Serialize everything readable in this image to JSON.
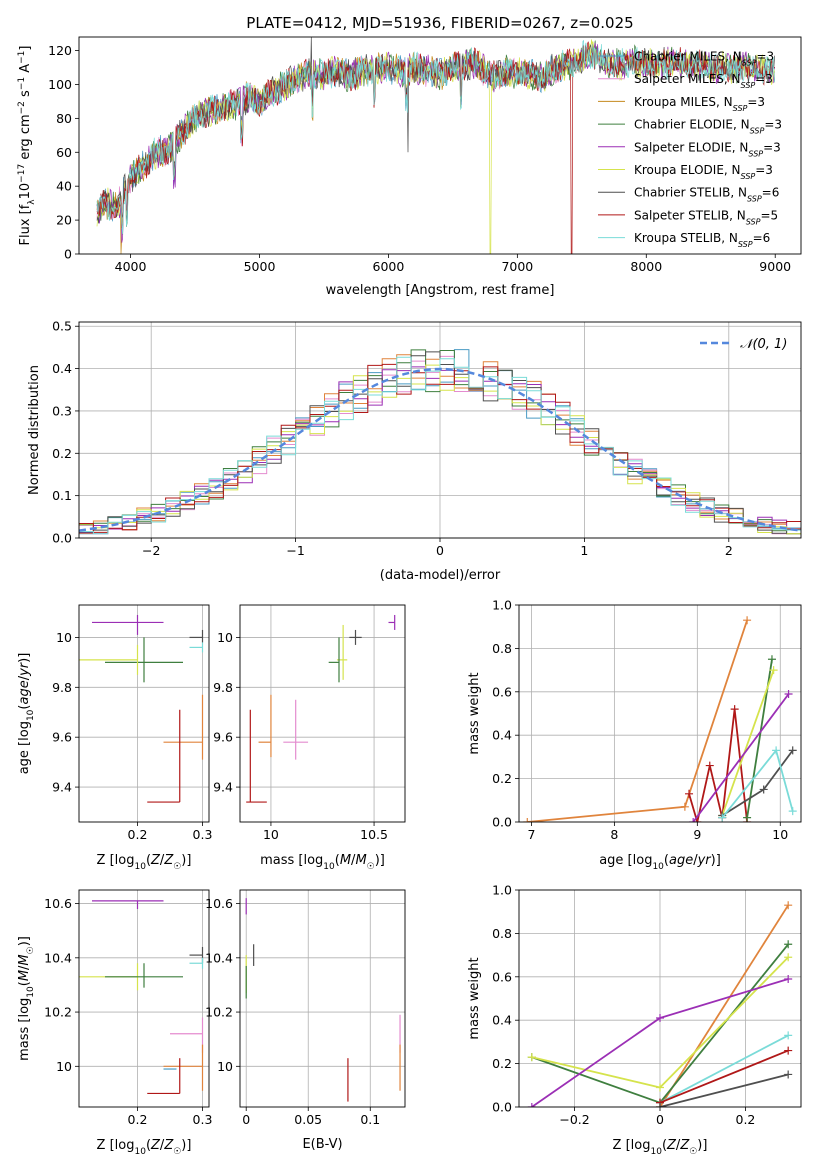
{
  "colors": {
    "chabrier_miles": "#4a9bc4",
    "salpeter_miles": "#e48ccf",
    "kroupa_miles": "#c58a1e",
    "chabrier_elodie": "#3f7f3f",
    "salpeter_elodie": "#9b2fb5",
    "kroupa_elodie": "#d5e34c",
    "chabrier_stelib": "#4f4f4f",
    "salpeter_stelib": "#b01818",
    "kroupa_stelib": "#7adbd8",
    "gaussian": "#5588dd",
    "orange": "#e0843c"
  },
  "chart_data": [
    {
      "id": "spectrum",
      "type": "line",
      "title": "PLATE=0412, MJD=51936, FIBERID=0267, z=0.025",
      "xlabel": "wavelength [Angstrom, rest frame]",
      "ylabel": "Flux [f_λ 10^-17 erg cm^-2 s^-1 A^-1]",
      "xlim": [
        3600,
        9200
      ],
      "ylim": [
        0,
        128
      ],
      "xticks": [
        4000,
        5000,
        6000,
        7000,
        8000,
        9000
      ],
      "yticks": [
        0,
        20,
        40,
        60,
        80,
        100,
        120
      ],
      "grid": false,
      "legend_position": "right",
      "spectrum_envelope": {
        "x": [
          3740,
          3800,
          3900,
          4000,
          4100,
          4200,
          4300,
          4400,
          4500,
          4600,
          4700,
          4800,
          4900,
          5000,
          5100,
          5200,
          5300,
          5400,
          5500,
          5600,
          5700,
          5800,
          5900,
          6000,
          6100,
          6200,
          6300,
          6400,
          6500,
          6600,
          6700,
          6800,
          6900,
          7000,
          7100,
          7200,
          7300,
          7400,
          7500,
          7600,
          7700,
          7800,
          7900,
          8000,
          8200,
          8400,
          8600,
          8800,
          9000
        ],
        "y": [
          25,
          30,
          28,
          45,
          52,
          60,
          62,
          72,
          80,
          84,
          86,
          88,
          92,
          90,
          95,
          100,
          104,
          106,
          106,
          108,
          105,
          108,
          109,
          110,
          108,
          110,
          108,
          106,
          110,
          112,
          112,
          104,
          108,
          107,
          106,
          104,
          110,
          112,
          116,
          118,
          112,
          112,
          114,
          112,
          113,
          111,
          110,
          110,
          108
        ]
      },
      "series": [
        {
          "name": "Chabrier MILES, N_SSP=3",
          "label": "Chabrier MILES, N",
          "sub": "SSP",
          "tail": "=3",
          "color_key": "chabrier_miles"
        },
        {
          "name": "Salpeter MILES, N_SSP=3",
          "label": "Salpeter MILES, N",
          "sub": "SSP",
          "tail": "=3",
          "color_key": "salpeter_miles"
        },
        {
          "name": "Kroupa MILES, N_SSP=3",
          "label": "Kroupa MILES, N",
          "sub": "SSP",
          "tail": "=3",
          "color_key": "kroupa_miles"
        },
        {
          "name": "Chabrier ELODIE, N_SSP=3",
          "label": "Chabrier ELODIE, N",
          "sub": "SSP",
          "tail": "=3",
          "color_key": "chabrier_elodie"
        },
        {
          "name": "Salpeter ELODIE, N_SSP=3",
          "label": "Salpeter ELODIE, N",
          "sub": "SSP",
          "tail": "=3",
          "color_key": "salpeter_elodie"
        },
        {
          "name": "Kroupa ELODIE, N_SSP=3",
          "label": "Kroupa ELODIE, N",
          "sub": "SSP",
          "tail": "=3",
          "color_key": "kroupa_elodie"
        },
        {
          "name": "Chabrier STELIB, N_SSP=6",
          "label": "Chabrier STELIB, N",
          "sub": "SSP",
          "tail": "=6",
          "color_key": "chabrier_stelib"
        },
        {
          "name": "Salpeter STELIB, N_SSP=5",
          "label": "Salpeter STELIB, N",
          "sub": "SSP",
          "tail": "=5",
          "color_key": "salpeter_stelib"
        },
        {
          "name": "Kroupa STELIB, N_SSP=6",
          "label": "Kroupa STELIB, N",
          "sub": "SSP",
          "tail": "=6",
          "color_key": "kroupa_stelib"
        }
      ]
    },
    {
      "id": "residuals",
      "type": "histogram",
      "xlabel": "(data-model)/error",
      "ylabel": "Normed distribution",
      "xlim": [
        -2.5,
        2.5
      ],
      "ylim": [
        0,
        0.51
      ],
      "xticks": [
        -2,
        -1,
        0,
        1,
        2
      ],
      "yticks": [
        0.0,
        0.1,
        0.2,
        0.3,
        0.4,
        0.5
      ],
      "grid": true,
      "legend_position": "top-right",
      "legend_label": "𝒩(0, 1)",
      "bin_width": 0.1
    },
    {
      "id": "age_vs_Z",
      "type": "errorbar",
      "xlabel": "Z [log10(Z/Z☉)]",
      "ylabel": "age [log10(age/yr)]",
      "xlim": [
        0.11,
        0.31
      ],
      "ylim": [
        9.26,
        10.13
      ],
      "xticks": [
        0.2,
        0.3
      ],
      "yticks": [
        9.4,
        9.6,
        9.8,
        10.0
      ],
      "grid": true,
      "points": [
        {
          "color_key": "salpeter_elodie",
          "x": 0.2,
          "y": 10.06,
          "xerr": [
            0.07,
            0.04
          ],
          "yerr": [
            0.05,
            0.03
          ]
        },
        {
          "color_key": "chabrier_elodie",
          "x": 0.21,
          "y": 9.9,
          "xerr": [
            0.06,
            0.06
          ],
          "yerr": [
            0.08,
            0.1
          ]
        },
        {
          "color_key": "kroupa_elodie",
          "x": 0.2,
          "y": 9.91,
          "xerr": [
            0.09,
            0.0
          ],
          "yerr": [
            0.06,
            0.06
          ]
        },
        {
          "color_key": "chabrier_stelib",
          "x": 0.3,
          "y": 10.0,
          "xerr": [
            0.02,
            0.0
          ],
          "yerr": [
            0.02,
            0.03
          ]
        },
        {
          "color_key": "kroupa_stelib",
          "x": 0.3,
          "y": 9.96,
          "xerr": [
            0.02,
            0.0
          ],
          "yerr": [
            0.02,
            0.02
          ]
        },
        {
          "color_key": "orange",
          "x": 0.3,
          "y": 9.58,
          "xerr": [
            0.06,
            0.0
          ],
          "yerr": [
            0.07,
            0.19
          ]
        },
        {
          "color_key": "salpeter_stelib",
          "x": 0.265,
          "y": 9.58,
          "xerr": [
            0.0,
            0.0
          ],
          "yerr": [
            0.24,
            0.13
          ]
        },
        {
          "color_key": "salpeter_stelib",
          "x": 0.265,
          "y": 9.34,
          "xerr": [
            0.05,
            0.0
          ],
          "yerr": [
            0.0,
            0.0
          ]
        }
      ]
    },
    {
      "id": "age_vs_mass",
      "type": "errorbar",
      "xlabel": "mass [log10(M/M☉)]",
      "ylabel": "",
      "xlim": [
        9.85,
        10.65
      ],
      "ylim": [
        9.26,
        10.13
      ],
      "xticks": [
        10.0,
        10.5
      ],
      "yticks": [
        9.4,
        9.6,
        9.8,
        10.0
      ],
      "grid": true,
      "points": [
        {
          "color_key": "salpeter_elodie",
          "x": 10.6,
          "y": 10.06,
          "xerr": [
            0.03,
            0.0
          ],
          "yerr": [
            0.03,
            0.03
          ]
        },
        {
          "color_key": "chabrier_stelib",
          "x": 10.41,
          "y": 10.0,
          "xerr": [
            0.03,
            0.03
          ],
          "yerr": [
            0.03,
            0.03
          ]
        },
        {
          "color_key": "kroupa_elodie",
          "x": 10.35,
          "y": 9.91,
          "xerr": [
            0.03,
            0.02
          ],
          "yerr": [
            0.08,
            0.14
          ]
        },
        {
          "color_key": "chabrier_elodie",
          "x": 10.33,
          "y": 9.9,
          "xerr": [
            0.05,
            0.0
          ],
          "yerr": [
            0.08,
            0.1
          ]
        },
        {
          "color_key": "salpeter_miles",
          "x": 10.12,
          "y": 9.58,
          "xerr": [
            0.06,
            0.06
          ],
          "yerr": [
            0.07,
            0.17
          ]
        },
        {
          "color_key": "orange",
          "x": 10.0,
          "y": 9.58,
          "xerr": [
            0.06,
            0.0
          ],
          "yerr": [
            0.06,
            0.19
          ]
        },
        {
          "color_key": "salpeter_stelib",
          "x": 9.9,
          "y": 9.34,
          "xerr": [
            0.02,
            0.08
          ],
          "yerr": [
            0.0,
            0.37
          ]
        }
      ]
    },
    {
      "id": "mass_weight_vs_age",
      "type": "line",
      "xlabel": "age [log10(age/yr)]",
      "ylabel": "mass weight",
      "xlim": [
        6.85,
        10.25
      ],
      "ylim": [
        0,
        1.0
      ],
      "xticks": [
        7,
        8,
        9,
        10
      ],
      "yticks": [
        0.0,
        0.2,
        0.4,
        0.6,
        0.8,
        1.0
      ],
      "grid": true,
      "series": [
        {
          "color_key": "orange",
          "x": [
            6.95,
            8.85,
            9.6
          ],
          "y": [
            0.0,
            0.07,
            0.93
          ]
        },
        {
          "color_key": "salpeter_stelib",
          "x": [
            8.9,
            9.0,
            9.15,
            9.3,
            9.45,
            9.6
          ],
          "y": [
            0.13,
            0.0,
            0.26,
            0.02,
            0.52,
            0.0
          ]
        },
        {
          "color_key": "chabrier_elodie",
          "x": [
            9.6,
            9.9
          ],
          "y": [
            0.02,
            0.75
          ]
        },
        {
          "color_key": "kroupa_elodie",
          "x": [
            9.3,
            9.92
          ],
          "y": [
            0.03,
            0.7
          ]
        },
        {
          "color_key": "salpeter_elodie",
          "x": [
            8.95,
            10.1
          ],
          "y": [
            0.0,
            0.59
          ]
        },
        {
          "color_key": "chabrier_stelib",
          "x": [
            9.3,
            9.8,
            10.15
          ],
          "y": [
            0.03,
            0.15,
            0.33
          ]
        },
        {
          "color_key": "kroupa_stelib",
          "x": [
            9.3,
            9.95,
            10.15
          ],
          "y": [
            0.02,
            0.33,
            0.05
          ]
        }
      ]
    },
    {
      "id": "mass_vs_Z",
      "type": "errorbar",
      "xlabel": "Z [log10(Z/Z☉)]",
      "ylabel": "mass [log10(M/M☉)]",
      "xlim": [
        0.11,
        0.31
      ],
      "ylim": [
        9.85,
        10.65
      ],
      "xticks": [
        0.2,
        0.3
      ],
      "yticks": [
        10.0,
        10.2,
        10.4,
        10.6
      ],
      "grid": true,
      "points": [
        {
          "color_key": "salpeter_elodie",
          "x": 0.2,
          "y": 10.61,
          "xerr": [
            0.07,
            0.04
          ],
          "yerr": [
            0.03,
            0.0
          ]
        },
        {
          "color_key": "chabrier_stelib",
          "x": 0.3,
          "y": 10.41,
          "xerr": [
            0.02,
            0.0
          ],
          "yerr": [
            0.03,
            0.03
          ]
        },
        {
          "color_key": "kroupa_stelib",
          "x": 0.3,
          "y": 10.38,
          "xerr": [
            0.02,
            0.0
          ],
          "yerr": [
            0.02,
            0.02
          ]
        },
        {
          "color_key": "kroupa_elodie",
          "x": 0.2,
          "y": 10.33,
          "xerr": [
            0.09,
            0.0
          ],
          "yerr": [
            0.05,
            0.05
          ]
        },
        {
          "color_key": "chabrier_elodie",
          "x": 0.21,
          "y": 10.33,
          "xerr": [
            0.06,
            0.06
          ],
          "yerr": [
            0.04,
            0.05
          ]
        },
        {
          "color_key": "salpeter_miles",
          "x": 0.3,
          "y": 10.12,
          "xerr": [
            0.05,
            0.0
          ],
          "yerr": [
            0.07,
            0.06
          ]
        },
        {
          "color_key": "orange",
          "x": 0.3,
          "y": 10.0,
          "xerr": [
            0.06,
            0.0
          ],
          "yerr": [
            0.09,
            0.08
          ]
        },
        {
          "color_key": "chabrier_miles",
          "x": 0.26,
          "y": 9.99,
          "xerr": [
            0.02,
            0.0
          ],
          "yerr": [
            0.0,
            0.0
          ]
        },
        {
          "color_key": "salpeter_stelib",
          "x": 0.265,
          "y": 9.9,
          "xerr": [
            0.05,
            0.0
          ],
          "yerr": [
            0.0,
            0.13
          ]
        }
      ]
    },
    {
      "id": "mass_vs_ebv",
      "type": "errorbar",
      "xlabel": "E(B-V)",
      "ylabel": "",
      "xlim": [
        -0.005,
        0.128
      ],
      "ylim": [
        9.85,
        10.65
      ],
      "xticks": [
        0.0,
        0.05,
        0.1
      ],
      "yticks": [
        10.0,
        10.2,
        10.4,
        10.6
      ],
      "grid": true,
      "points": [
        {
          "color_key": "salpeter_elodie",
          "x": 0.0,
          "y": 10.59,
          "xerr": [
            0.0,
            0.0
          ],
          "yerr": [
            0.03,
            0.03
          ]
        },
        {
          "color_key": "chabrier_stelib",
          "x": 0.006,
          "y": 10.41,
          "xerr": [
            0.0,
            0.0
          ],
          "yerr": [
            0.04,
            0.04
          ]
        },
        {
          "color_key": "kroupa_elodie",
          "x": 0.0,
          "y": 10.34,
          "xerr": [
            0.0,
            0.0
          ],
          "yerr": [
            0.07,
            0.07
          ]
        },
        {
          "color_key": "chabrier_elodie",
          "x": 0.0,
          "y": 10.31,
          "xerr": [
            0.0,
            0.0
          ],
          "yerr": [
            0.06,
            0.06
          ]
        },
        {
          "color_key": "salpeter_miles",
          "x": 0.124,
          "y": 10.1,
          "xerr": [
            0.0,
            0.0
          ],
          "yerr": [
            0.05,
            0.09
          ]
        },
        {
          "color_key": "orange",
          "x": 0.124,
          "y": 10.0,
          "xerr": [
            0.0,
            0.0
          ],
          "yerr": [
            0.09,
            0.08
          ]
        },
        {
          "color_key": "salpeter_stelib",
          "x": 0.082,
          "y": 9.95,
          "xerr": [
            0.0,
            0.0
          ],
          "yerr": [
            0.08,
            0.08
          ]
        }
      ]
    },
    {
      "id": "mass_weight_vs_Z",
      "type": "line",
      "xlabel": "Z [log10(Z/Z☉)]",
      "ylabel": "mass weight",
      "xlim": [
        -0.33,
        0.33
      ],
      "ylim": [
        0,
        1.0
      ],
      "xticks": [
        -0.2,
        0.0,
        0.2
      ],
      "yticks": [
        0.0,
        0.2,
        0.4,
        0.6,
        0.8,
        1.0
      ],
      "grid": true,
      "series": [
        {
          "color_key": "orange",
          "x": [
            0.0,
            0.3
          ],
          "y": [
            0.0,
            0.93
          ]
        },
        {
          "color_key": "chabrier_elodie",
          "x": [
            -0.3,
            0.0,
            0.3
          ],
          "y": [
            0.23,
            0.02,
            0.75
          ]
        },
        {
          "color_key": "kroupa_elodie",
          "x": [
            -0.3,
            0.0,
            0.3
          ],
          "y": [
            0.23,
            0.09,
            0.69
          ]
        },
        {
          "color_key": "salpeter_elodie",
          "x": [
            -0.3,
            0.0,
            0.3
          ],
          "y": [
            0.0,
            0.41,
            0.59
          ]
        },
        {
          "color_key": "kroupa_stelib",
          "x": [
            0.0,
            0.3
          ],
          "y": [
            0.02,
            0.33
          ]
        },
        {
          "color_key": "salpeter_stelib",
          "x": [
            0.0,
            0.3
          ],
          "y": [
            0.02,
            0.26
          ]
        },
        {
          "color_key": "chabrier_stelib",
          "x": [
            0.0,
            0.3
          ],
          "y": [
            0.0,
            0.15
          ]
        }
      ]
    }
  ]
}
